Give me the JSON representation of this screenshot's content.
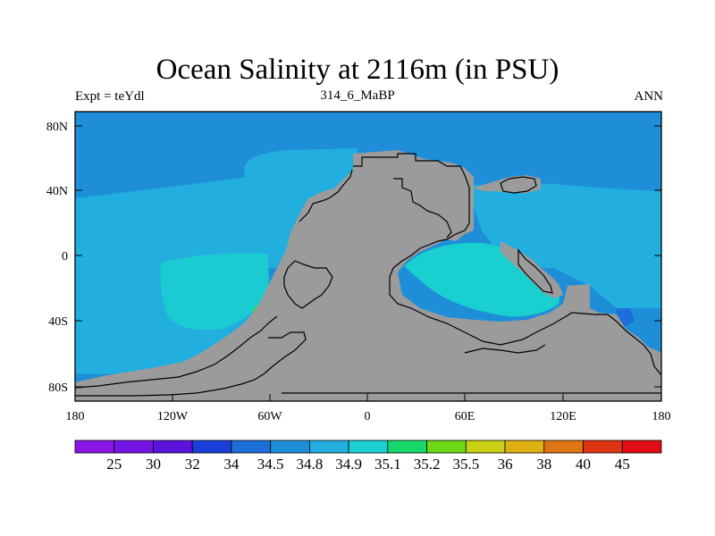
{
  "title": "Ocean Salinity at 2116m (in PSU)",
  "subtitle_left": "Expt = teYdl",
  "subtitle_center": "314_6_MaBP",
  "subtitle_right": "ANN",
  "axes": {
    "x_ticks": [
      "180",
      "120W",
      "60W",
      "0",
      "60E",
      "120E",
      "180"
    ],
    "y_ticks": [
      "80N",
      "40N",
      "0",
      "40S",
      "80S"
    ]
  },
  "colorbar": {
    "labels": [
      "25",
      "30",
      "32",
      "34",
      "34.5",
      "34.8",
      "34.9",
      "35.1",
      "35.2",
      "35.5",
      "36",
      "38",
      "40",
      "45"
    ],
    "colors": [
      "#8a16e6",
      "#7314e4",
      "#5a12dc",
      "#1a3fd8",
      "#1c6ed8",
      "#1f8ed8",
      "#22aede",
      "#19cfcf",
      "#16d86a",
      "#6ad814",
      "#c8cf14",
      "#dfb014",
      "#df7414",
      "#df3414",
      "#e00e14"
    ]
  },
  "map_colors": {
    "deep_blue": "#1f8ed8",
    "mid_blue": "#22aede",
    "cyan": "#19cfcf",
    "green": "#16d86a",
    "land": "#9b9b9b"
  }
}
